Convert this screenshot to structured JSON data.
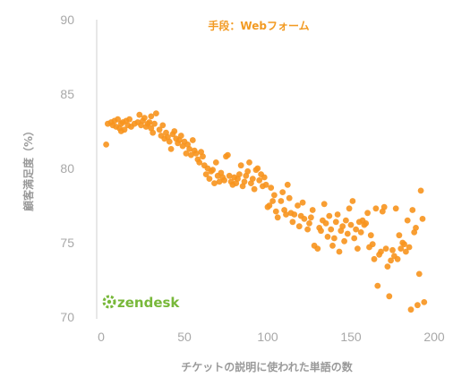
{
  "chart_data": {
    "type": "scatter",
    "title": "手段：Webフォーム",
    "xlabel": "チケットの説明に使われた単語の数",
    "ylabel": "顧客満足度（%）",
    "xlim": [
      0,
      200
    ],
    "ylim": [
      70,
      90
    ],
    "xticks": [
      "0",
      "50",
      "100",
      "150",
      "200"
    ],
    "yticks": [
      "70",
      "75",
      "80",
      "85",
      "90"
    ],
    "grid": false,
    "point_color": "#f7941d",
    "brand": "zendesk",
    "brand_color": "#78b83a",
    "x": [
      3,
      4,
      6,
      7,
      8,
      9,
      10,
      11,
      12,
      12,
      13,
      14,
      15,
      16,
      17,
      18,
      20,
      22,
      23,
      24,
      25,
      26,
      27,
      28,
      29,
      30,
      30,
      31,
      32,
      33,
      35,
      36,
      37,
      38,
      39,
      40,
      41,
      42,
      43,
      44,
      45,
      46,
      47,
      48,
      49,
      50,
      51,
      52,
      53,
      54,
      55,
      56,
      57,
      58,
      59,
      60,
      61,
      62,
      63,
      64,
      65,
      66,
      67,
      68,
      69,
      70,
      71,
      72,
      73,
      74,
      75,
      76,
      77,
      78,
      79,
      80,
      81,
      82,
      83,
      84,
      85,
      86,
      87,
      88,
      89,
      90,
      91,
      92,
      93,
      94,
      95,
      96,
      97,
      98,
      99,
      100,
      101,
      102,
      103,
      104,
      105,
      106,
      108,
      109,
      110,
      111,
      112,
      113,
      114,
      115,
      116,
      118,
      119,
      120,
      121,
      122,
      124,
      125,
      126,
      127,
      128,
      130,
      131,
      132,
      133,
      134,
      135,
      136,
      137,
      138,
      139,
      140,
      141,
      142,
      143,
      144,
      145,
      146,
      147,
      148,
      149,
      150,
      151,
      152,
      153,
      154,
      155,
      156,
      157,
      158,
      159,
      160,
      161,
      162,
      163,
      164,
      165,
      166,
      167,
      168,
      169,
      170,
      171,
      172,
      173,
      174,
      175,
      176,
      177,
      178,
      179,
      180,
      181,
      182,
      183,
      184,
      185,
      186,
      187,
      188,
      189,
      190,
      191,
      192,
      193,
      194
    ],
    "y": [
      81.6,
      83.0,
      83.1,
      82.9,
      83.2,
      82.8,
      83.3,
      82.7,
      83.0,
      82.5,
      83.1,
      82.6,
      83.2,
      82.9,
      83.3,
      82.8,
      83.0,
      83.1,
      83.6,
      82.9,
      83.2,
      83.4,
      82.8,
      83.0,
      83.1,
      82.7,
      83.5,
      82.4,
      83.0,
      83.7,
      82.6,
      82.2,
      82.9,
      82.0,
      82.4,
      82.1,
      81.8,
      81.3,
      82.3,
      82.5,
      82.0,
      81.7,
      81.9,
      82.2,
      81.5,
      81.8,
      81.0,
      81.6,
      81.3,
      80.9,
      81.9,
      81.2,
      81.0,
      80.6,
      80.4,
      81.1,
      80.8,
      80.2,
      79.6,
      80.0,
      79.3,
      79.8,
      79.9,
      79.0,
      80.4,
      79.5,
      79.1,
      79.7,
      79.4,
      79.2,
      80.8,
      80.9,
      79.5,
      79.1,
      78.9,
      79.4,
      79.0,
      79.3,
      79.6,
      80.2,
      78.8,
      79.1,
      79.5,
      79.8,
      80.4,
      79.0,
      79.3,
      78.6,
      79.9,
      80.0,
      79.2,
      79.6,
      78.8,
      79.4,
      78.9,
      77.4,
      77.5,
      78.7,
      77.8,
      78.2,
      77.1,
      76.7,
      77.8,
      78.4,
      77.2,
      76.9,
      78.9,
      78.0,
      77.0,
      76.4,
      76.9,
      77.5,
      76.1,
      76.8,
      77.7,
      76.6,
      75.9,
      76.3,
      76.7,
      77.2,
      74.8,
      74.6,
      76.0,
      75.8,
      76.5,
      77.6,
      76.3,
      75.4,
      76.8,
      75.9,
      74.8,
      75.3,
      76.4,
      76.9,
      74.4,
      75.8,
      76.1,
      75.1,
      76.5,
      75.6,
      77.3,
      76.2,
      77.8,
      75.3,
      75.9,
      74.6,
      76.4,
      75.7,
      76.5,
      76.2,
      76.3,
      77.0,
      74.7,
      75.5,
      74.9,
      73.9,
      77.3,
      72.1,
      74.2,
      74.4,
      77.1,
      77.4,
      74.6,
      73.4,
      71.4,
      73.8,
      74.5,
      74.1,
      77.3,
      73.9,
      75.5,
      74.6,
      75.0,
      74.9,
      74.4,
      76.5,
      74.7,
      70.5,
      77.2,
      75.7,
      76.0,
      70.8,
      72.9,
      78.5,
      76.6,
      71.0
    ]
  }
}
